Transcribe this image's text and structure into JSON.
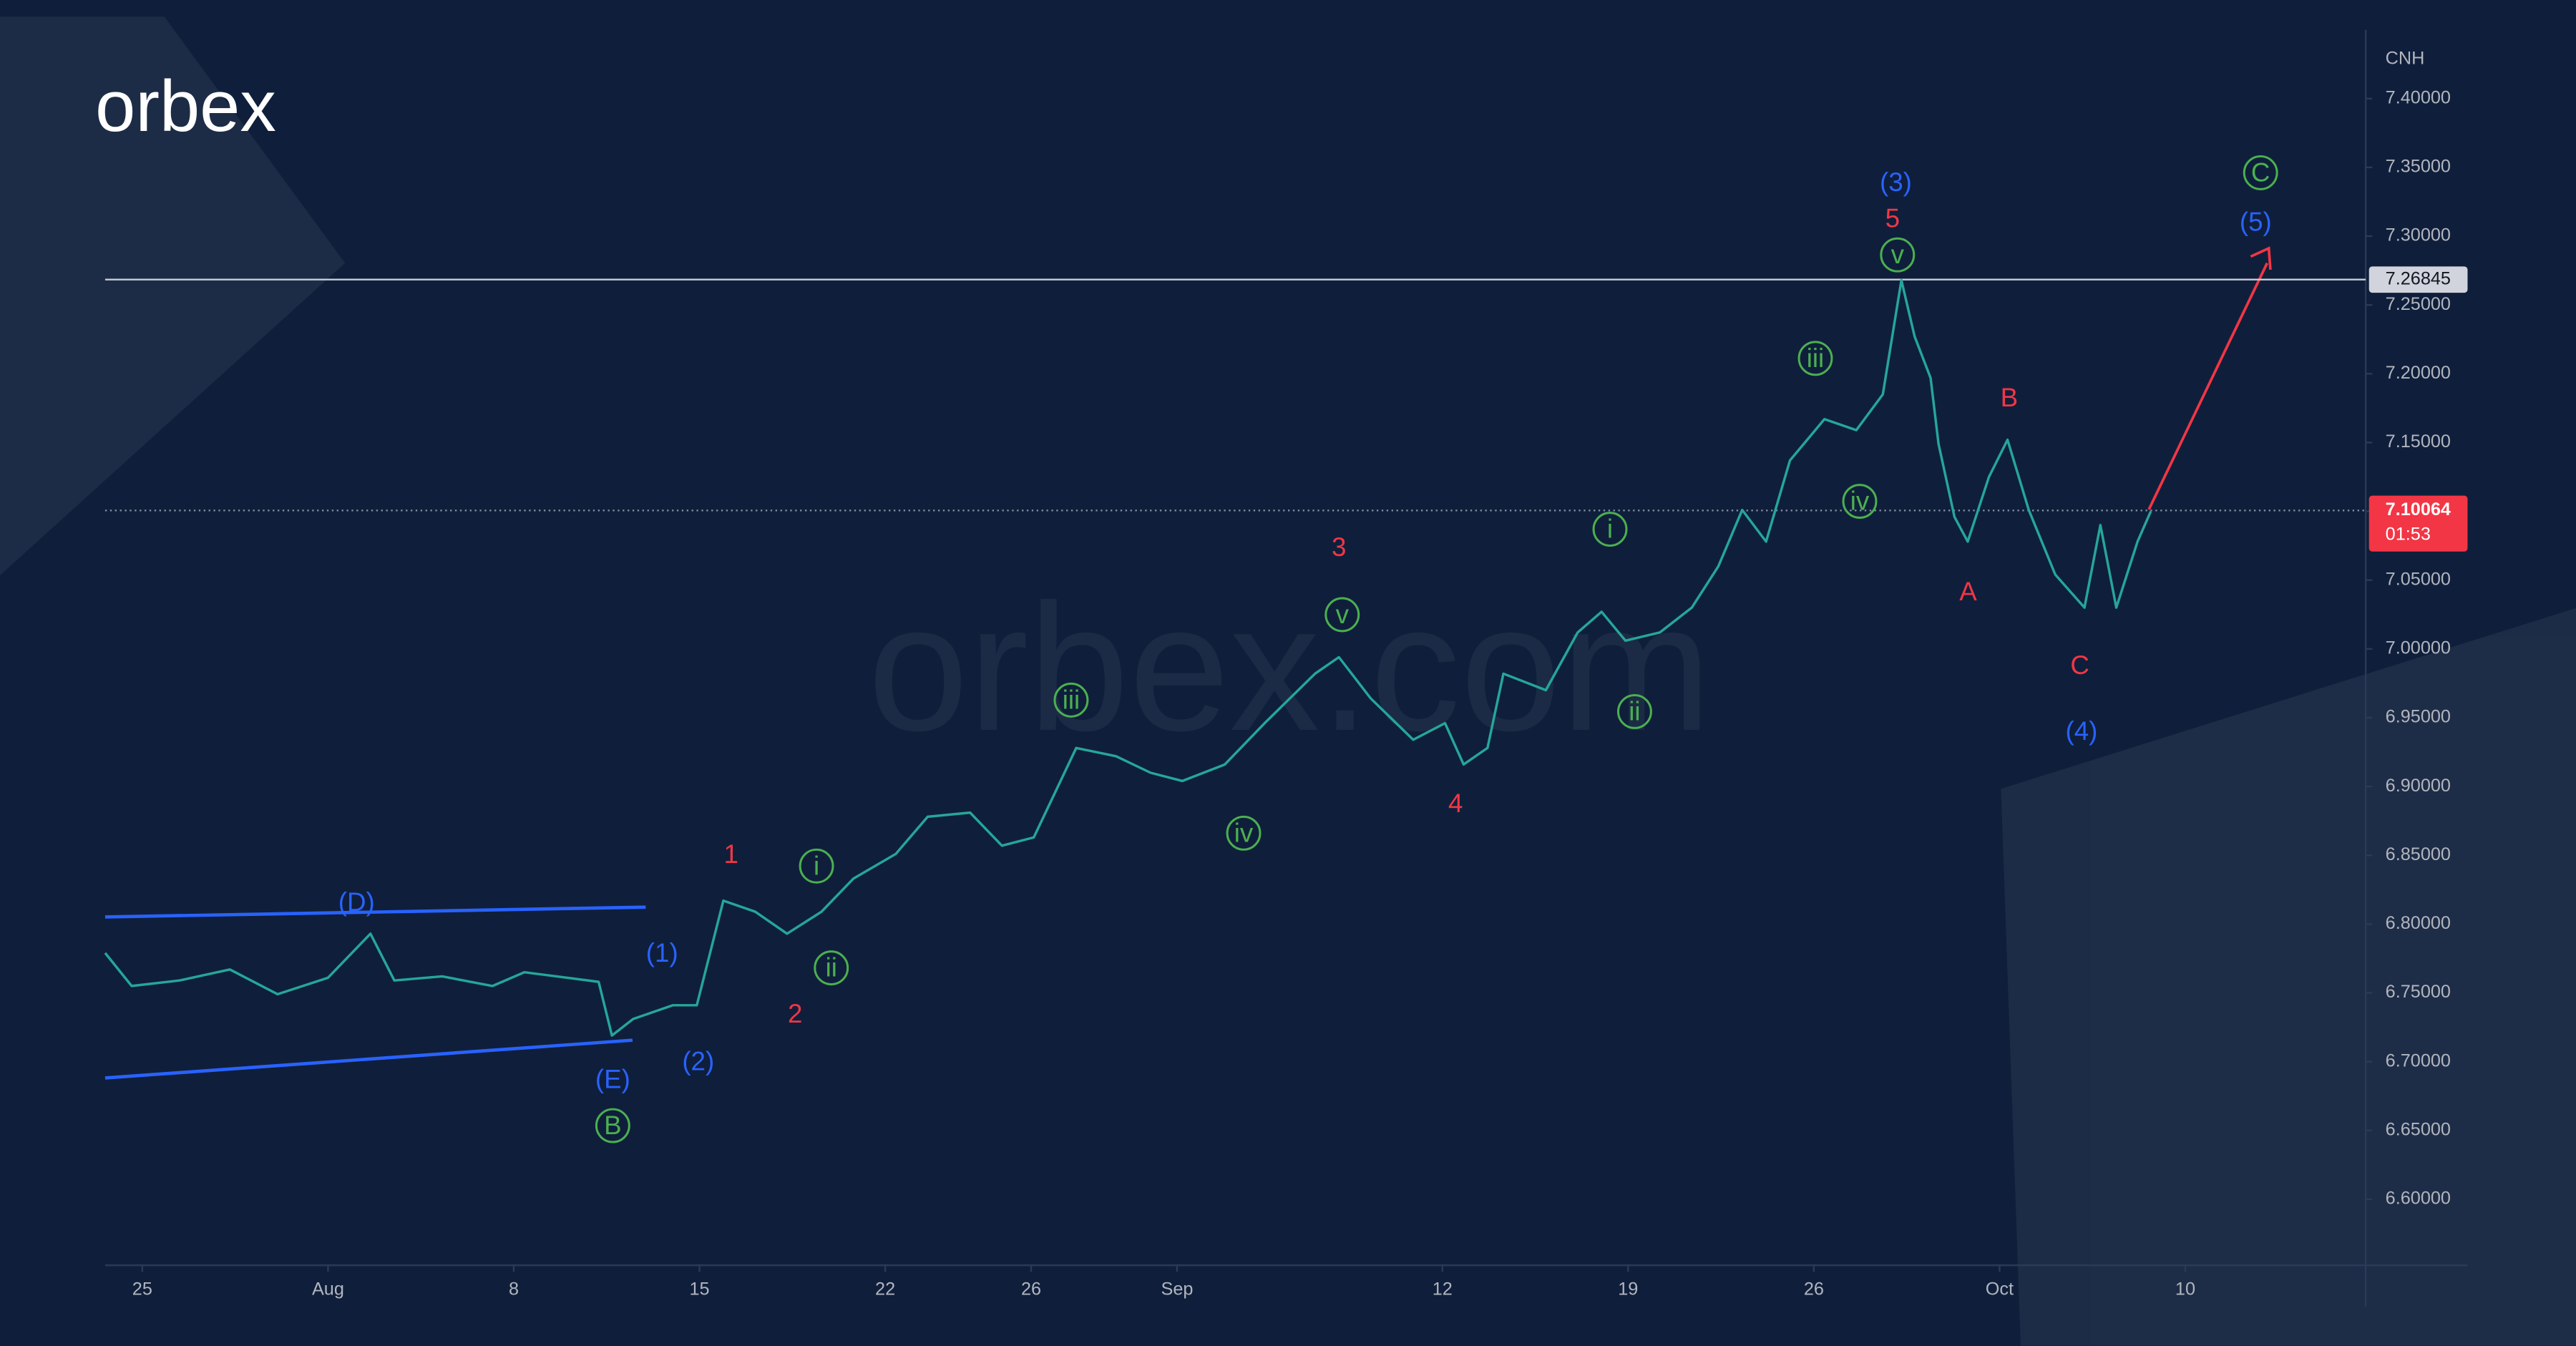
{
  "chart_data": {
    "type": "line",
    "logo": "orbex",
    "watermark": "orbex.com",
    "axis_label": "CNH",
    "x": [
      -1.4,
      -0.4,
      1.4,
      3.3,
      5.1,
      7.0,
      8.6,
      9.5,
      11.3,
      13.2,
      14.4,
      16.0,
      17.2,
      17.7,
      18.5,
      20.0,
      20.9,
      21.9,
      23.1,
      24.3,
      25.6,
      26.8,
      28.4,
      29.6,
      31.2,
      32.4,
      33.6,
      35.2,
      36.7,
      38.0,
      39.2,
      40.8,
      42.3,
      44.2,
      45.1,
      46.3,
      47.9,
      49.1,
      49.8,
      50.7,
      51.3,
      52.9,
      54.1,
      55.0,
      55.9,
      57.2,
      58.4,
      59.4,
      60.3,
      61.2,
      62.1,
      63.4,
      64.6,
      65.6,
      66.3,
      66.8,
      67.4,
      67.7,
      68.3,
      68.8,
      69.6,
      70.3,
      71.1,
      72.1,
      73.2,
      73.8,
      74.4,
      75.2,
      75.7
    ],
    "series": [
      {
        "color": "#26a69a",
        "values": [
          6.779,
          6.755,
          6.759,
          6.767,
          6.749,
          6.761,
          6.793,
          6.759,
          6.762,
          6.755,
          6.765,
          6.761,
          6.758,
          6.719,
          6.731,
          6.741,
          6.741,
          6.817,
          6.809,
          6.793,
          6.809,
          6.833,
          6.851,
          6.878,
          6.881,
          6.857,
          6.863,
          6.928,
          6.922,
          6.91,
          6.904,
          6.916,
          6.946,
          6.982,
          6.994,
          6.964,
          6.934,
          6.946,
          6.916,
          6.928,
          6.982,
          6.97,
          7.012,
          7.027,
          7.006,
          7.012,
          7.03,
          7.06,
          7.101,
          7.078,
          7.137,
          7.167,
          7.159,
          7.185,
          7.268,
          7.227,
          7.197,
          7.149,
          7.096,
          7.078,
          7.125,
          7.152,
          7.101,
          7.054,
          7.03,
          7.09,
          7.03,
          7.078,
          7.1
        ]
      }
    ],
    "xlim": [
      -1.4,
      83.8
    ],
    "ylim": [
      6.552,
      7.45
    ],
    "xticks": [
      {
        "value": 0,
        "label": "25"
      },
      {
        "value": 7,
        "label": "Aug"
      },
      {
        "value": 14,
        "label": "8"
      },
      {
        "value": 21,
        "label": "15"
      },
      {
        "value": 28,
        "label": "22"
      },
      {
        "value": 33.5,
        "label": "26"
      },
      {
        "value": 39,
        "label": "Sep"
      },
      {
        "value": 49,
        "label": "12"
      },
      {
        "value": 56,
        "label": "19"
      },
      {
        "value": 63,
        "label": "26"
      },
      {
        "value": 70,
        "label": "Oct"
      },
      {
        "value": 77,
        "label": "10"
      }
    ],
    "yticks": [
      {
        "value": 6.6,
        "label": "6.60000"
      },
      {
        "value": 6.65,
        "label": "6.65000"
      },
      {
        "value": 6.7,
        "label": "6.70000"
      },
      {
        "value": 6.75,
        "label": "6.75000"
      },
      {
        "value": 6.8,
        "label": "6.80000"
      },
      {
        "value": 6.85,
        "label": "6.85000"
      },
      {
        "value": 6.9,
        "label": "6.90000"
      },
      {
        "value": 6.95,
        "label": "6.95000"
      },
      {
        "value": 7.0,
        "label": "7.00000"
      },
      {
        "value": 7.05,
        "label": "7.05000"
      },
      {
        "value": 7.1,
        "label": "7.10000"
      },
      {
        "value": 7.15,
        "label": "7.15000"
      },
      {
        "value": 7.2,
        "label": "7.20000"
      },
      {
        "value": 7.25,
        "label": "7.25000"
      },
      {
        "value": 7.3,
        "label": "7.30000"
      },
      {
        "value": 7.35,
        "label": "7.35000"
      },
      {
        "value": 7.4,
        "label": "7.40000"
      }
    ],
    "level": {
      "value": 7.26845,
      "label": "7.26845"
    },
    "current_price": {
      "value": 7.10064,
      "label": "7.10064"
    },
    "countdown": "01:53",
    "annotations": [
      "(D)",
      "(1)",
      "(E)",
      "B",
      "(2)",
      "1",
      "i",
      "ii",
      "2",
      "iii",
      "iv",
      "v",
      "3",
      "4",
      "i",
      "ii",
      "iii",
      "iv",
      "v",
      "5",
      "(3)",
      "A",
      "B",
      "C",
      "(4)",
      "C",
      "(5)"
    ]
  }
}
